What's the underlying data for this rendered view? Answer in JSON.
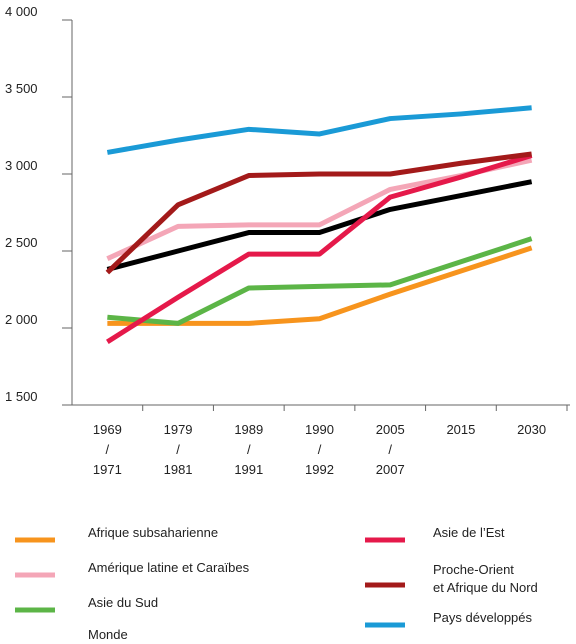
{
  "chart_data": {
    "type": "line",
    "categories": [
      "1969\n/\n1971",
      "1979\n/\n1981",
      "1989\n/\n1991",
      "1990\n/\n1992",
      "2005\n/\n2007",
      "2015",
      "2030"
    ],
    "ylim": [
      1500,
      4000
    ],
    "yticks": [
      {
        "value": 1500,
        "label": "1 500"
      },
      {
        "value": 2000,
        "label": "2 000"
      },
      {
        "value": 2500,
        "label": "2 500"
      },
      {
        "value": 3000,
        "label": "3 000"
      },
      {
        "value": 3500,
        "label": "3 500"
      },
      {
        "value": 4000,
        "label": "4 000"
      }
    ],
    "grid": false,
    "series": [
      {
        "name": "Afrique subsaharienne",
        "color": "#f7941d",
        "values": [
          2030,
          2030,
          2030,
          2060,
          2220,
          2370,
          2520
        ]
      },
      {
        "name": "Amérique latine et Caraïbes",
        "color": "#f4a6b7",
        "values": [
          2450,
          2660,
          2670,
          2670,
          2900,
          2990,
          3090
        ]
      },
      {
        "name": "Asie du Sud",
        "color": "#5cb547",
        "values": [
          2070,
          2030,
          2260,
          2270,
          2280,
          2430,
          2580
        ]
      },
      {
        "name": "Monde",
        "color": "#000000",
        "values": [
          2380,
          2500,
          2620,
          2620,
          2770,
          2860,
          2950
        ]
      },
      {
        "name": "Asie de l’Est",
        "color": "#e5194a",
        "values": [
          1910,
          2200,
          2480,
          2480,
          2850,
          2980,
          3120
        ]
      },
      {
        "name": "Proche-Orient\net Afrique du Nord",
        "color": "#a31a1a",
        "values": [
          2360,
          2800,
          2990,
          3000,
          3000,
          3070,
          3130
        ]
      },
      {
        "name": "Pays développés",
        "color": "#1a9ad6",
        "values": [
          3140,
          3220,
          3290,
          3260,
          3360,
          3390,
          3430
        ]
      }
    ]
  }
}
